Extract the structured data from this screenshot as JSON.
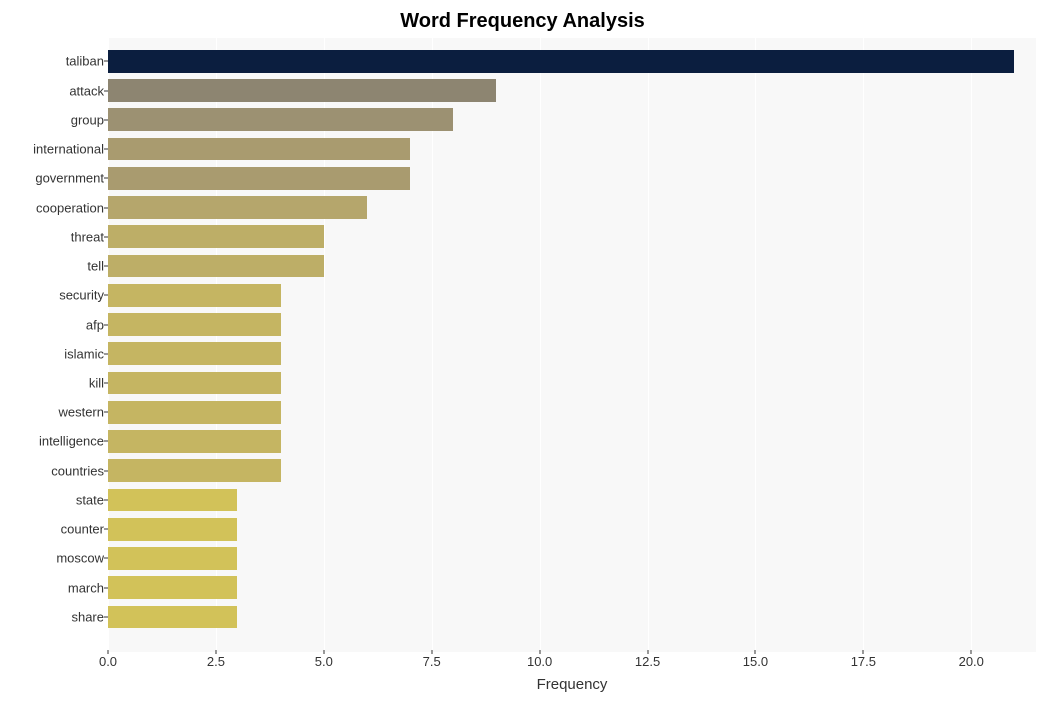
{
  "chart": {
    "type": "bar_horizontal",
    "title": "Word Frequency Analysis",
    "title_fontsize": 20,
    "title_fontweight": "bold",
    "title_color": "#000000",
    "xlabel": "Frequency",
    "xlabel_fontsize": 15,
    "background_color": "#ffffff",
    "plot_background_color": "#f8f8f8",
    "grid_color": "#ffffff",
    "xlim": [
      0,
      21.5
    ],
    "x_ticks": [
      0.0,
      2.5,
      5.0,
      7.5,
      10.0,
      12.5,
      15.0,
      17.5,
      20.0
    ],
    "x_tick_labels": [
      "0.0",
      "2.5",
      "5.0",
      "7.5",
      "10.0",
      "12.5",
      "15.0",
      "17.5",
      "20.0"
    ],
    "tick_fontsize": 13,
    "tick_color": "#333333",
    "bar_height_ratio": 0.78,
    "categories": [
      "taliban",
      "attack",
      "group",
      "international",
      "government",
      "cooperation",
      "threat",
      "tell",
      "security",
      "afp",
      "islamic",
      "kill",
      "western",
      "intelligence",
      "countries",
      "state",
      "counter",
      "moscow",
      "march",
      "share"
    ],
    "values": [
      21,
      9,
      8,
      7,
      7,
      6,
      5,
      5,
      4,
      4,
      4,
      4,
      4,
      4,
      4,
      3,
      3,
      3,
      3,
      3
    ],
    "bar_colors": [
      "#0b1e3f",
      "#8d8571",
      "#9c9172",
      "#a99b6f",
      "#a99b6f",
      "#b5a66c",
      "#bdae67",
      "#bdae67",
      "#c5b562",
      "#c5b562",
      "#c5b562",
      "#c5b562",
      "#c5b562",
      "#c5b562",
      "#c5b562",
      "#d2c259",
      "#d2c259",
      "#d2c259",
      "#d2c259",
      "#d2c259"
    ]
  }
}
